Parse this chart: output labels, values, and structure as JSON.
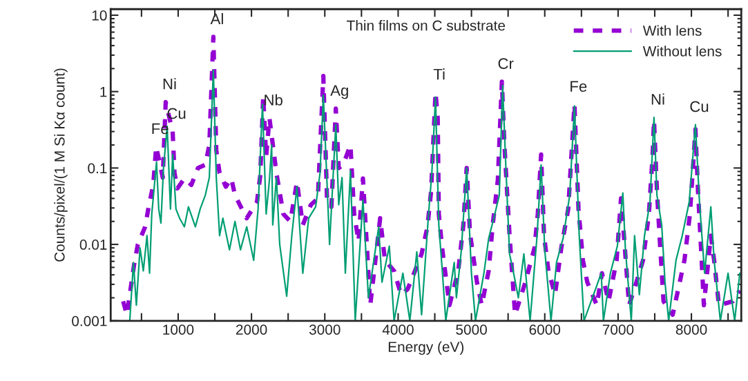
{
  "chart_data": {
    "type": "line",
    "title": "Thin films on C substrate",
    "xlabel": "Energy (eV)",
    "ylabel": "Counts/pixel/(1 M Si Kα count)",
    "log": "y",
    "grid": false,
    "legend": "top right",
    "xlim": [
      80,
      8680
    ],
    "ylim": [
      0.001,
      12
    ],
    "xticks": [
      {
        "value": 500,
        "label": null
      },
      1000,
      {
        "value": 1500,
        "label": null
      },
      2000,
      {
        "value": 2500,
        "label": null
      },
      3000,
      {
        "value": 3500,
        "label": null
      },
      4000,
      {
        "value": 4500,
        "label": null
      },
      5000,
      {
        "value": 5500,
        "label": null
      },
      6000,
      {
        "value": 6500,
        "label": null
      },
      7000,
      {
        "value": 7500,
        "label": null
      },
      8000,
      {
        "value": 8500,
        "label": null
      }
    ],
    "yticks": [
      0.001,
      0.01,
      0.1,
      1,
      10
    ],
    "series": [
      {
        "name": "With lens",
        "color": "#9400d3",
        "line_style": "dashed",
        "x": [
          250,
          300,
          400,
          450,
          550,
          595,
          660,
          700,
          790,
          830,
          925,
          950,
          990,
          1085,
          1180,
          1270,
          1370,
          1425,
          1480,
          1520,
          1565,
          1650,
          1725,
          1775,
          1870,
          1935,
          2075,
          2120,
          2160,
          2200,
          2245,
          2340,
          2435,
          2530,
          2620,
          2700,
          2810,
          2905,
          2980,
          3030,
          3090,
          3150,
          3190,
          3250,
          3350,
          3400,
          3460,
          3520,
          3570,
          3620,
          3755,
          3820,
          3945,
          4040,
          4130,
          4230,
          4320,
          4400,
          4450,
          4510,
          4540,
          4555,
          4600,
          4700,
          4820,
          4890,
          4935,
          4980,
          5075,
          5140,
          5235,
          5290,
          5360,
          5415,
          5450,
          5520,
          5595,
          5735,
          5860,
          5905,
          5950,
          5990,
          6050,
          6140,
          6225,
          6320,
          6405,
          6460,
          6520,
          6580,
          6710,
          6780,
          6870,
          6980,
          7040,
          7080,
          7150,
          7250,
          7340,
          7420,
          7470,
          7490,
          7530,
          7575,
          7620,
          7745,
          7905,
          7980,
          8055,
          8090,
          8140,
          8170,
          8265,
          8310,
          8375,
          8565,
          8660
        ],
        "values": [
          0.0018,
          0.0012,
          0.0055,
          0.01,
          0.017,
          0.03,
          0.06,
          0.19,
          0.075,
          0.73,
          0.3,
          0.086,
          0.054,
          0.073,
          0.06,
          0.1,
          0.11,
          0.2,
          5.2,
          0.17,
          0.086,
          0.057,
          0.073,
          0.044,
          0.029,
          0.022,
          0.036,
          0.08,
          0.88,
          0.14,
          0.45,
          0.086,
          0.025,
          0.02,
          0.066,
          0.018,
          0.033,
          0.04,
          1.6,
          0.04,
          0.031,
          0.6,
          0.1,
          0.11,
          0.2,
          0.025,
          0.011,
          0.073,
          0.011,
          0.0016,
          0.022,
          0.0062,
          0.0045,
          0.0022,
          0.0026,
          0.0045,
          0.0075,
          0.017,
          0.05,
          0.98,
          0.45,
          0.025,
          0.009,
          0.0016,
          0.0045,
          0.018,
          0.1,
          0.014,
          0.0032,
          0.0016,
          0.0045,
          0.018,
          0.07,
          1.35,
          0.2,
          0.013,
          0.0012,
          0.0032,
          0.009,
          0.025,
          0.15,
          0.013,
          0.0045,
          0.0022,
          0.009,
          0.029,
          0.68,
          0.029,
          0.0062,
          0.0032,
          0.0016,
          0.0042,
          0.0018,
          0.0062,
          0.04,
          0.013,
          0.0016,
          0.0032,
          0.0062,
          0.025,
          0.14,
          0.42,
          0.05,
          0.009,
          0.0018,
          0.0012,
          0.0062,
          0.025,
          0.32,
          0.05,
          0.0062,
          0.0016,
          0.013,
          0.0062,
          0.0016,
          0.0018,
          0.0025
        ]
      },
      {
        "name": "Without lens",
        "color": "#009e73",
        "line_style": "solid",
        "x": [
          340,
          390,
          430,
          480,
          525,
          575,
          610,
          640,
          705,
          735,
          765,
          800,
          850,
          895,
          925,
          970,
          1020,
          1085,
          1140,
          1235,
          1300,
          1370,
          1425,
          1480,
          1520,
          1565,
          1610,
          1700,
          1775,
          1850,
          1935,
          2030,
          2090,
          2150,
          2200,
          2245,
          2275,
          2290,
          2340,
          2385,
          2480,
          2550,
          2620,
          2700,
          2780,
          2875,
          2935,
          2980,
          3065,
          3150,
          3190,
          3235,
          3280,
          3350,
          3415,
          3520,
          3595,
          3735,
          3780,
          3880,
          3945,
          4065,
          4160,
          4255,
          4320,
          4415,
          4460,
          4510,
          4555,
          4605,
          4650,
          4765,
          4795,
          4860,
          4935,
          5000,
          5055,
          5170,
          5235,
          5310,
          5380,
          5425,
          5470,
          5520,
          5575,
          5640,
          5715,
          5800,
          5895,
          5950,
          6000,
          6085,
          6160,
          6250,
          6340,
          6405,
          6470,
          6535,
          6650,
          6770,
          6800,
          6895,
          6990,
          7065,
          7100,
          7180,
          7225,
          7290,
          7360,
          7435,
          7490,
          7530,
          7595,
          7640,
          7690,
          7790,
          7875,
          7970,
          8055,
          8110,
          8180,
          8265,
          8310,
          8395,
          8500,
          8590,
          8660
        ],
        "values": [
          0.001,
          0.0058,
          0.0016,
          0.009,
          0.0045,
          0.013,
          0.0042,
          0.025,
          0.12,
          0.029,
          0.019,
          0.1,
          0.35,
          0.029,
          0.15,
          0.029,
          0.022,
          0.017,
          0.031,
          0.017,
          0.029,
          0.044,
          0.075,
          1.9,
          0.075,
          0.013,
          0.022,
          0.0085,
          0.02,
          0.0085,
          0.017,
          0.0062,
          0.029,
          0.68,
          0.025,
          0.07,
          0.2,
          0.018,
          0.075,
          0.01,
          0.0021,
          0.013,
          0.057,
          0.0042,
          0.022,
          0.031,
          0.086,
          0.9,
          0.01,
          0.37,
          0.033,
          0.075,
          0.0042,
          0.092,
          0.001,
          0.038,
          0.002,
          0.017,
          0.0032,
          0.0095,
          0.001,
          0.0042,
          0.001,
          0.008,
          0.0012,
          0.025,
          0.086,
          0.85,
          0.018,
          0.0042,
          0.001,
          0.0058,
          0.002,
          0.008,
          0.1,
          0.0042,
          0.001,
          0.0042,
          0.012,
          0.023,
          0.044,
          1.2,
          0.1,
          0.0075,
          0.0042,
          0.002,
          0.0075,
          0.001,
          0.013,
          0.11,
          0.0085,
          0.001,
          0.0058,
          0.012,
          0.044,
          0.65,
          0.013,
          0.001,
          0.002,
          0.0042,
          0.001,
          0.0042,
          0.0095,
          0.047,
          0.0085,
          0.001,
          0.013,
          0.0022,
          0.013,
          0.036,
          0.46,
          0.044,
          0.018,
          0.0032,
          0.001,
          0.0062,
          0.013,
          0.036,
          0.37,
          0.036,
          0.0042,
          0.031,
          0.0062,
          0.001,
          0.0042,
          0.001,
          0.0042
        ]
      }
    ],
    "annotations": [
      {
        "text": "Fe",
        "x": 700,
        "y": 0.19
      },
      {
        "text": "Ni",
        "x": 830,
        "y": 0.73
      },
      {
        "text": "Cu",
        "x": 925,
        "y": 0.3
      },
      {
        "text": "Al",
        "x": 1480,
        "y": 5.2
      },
      {
        "text": "Nb",
        "x": 2245,
        "y": 0.45
      },
      {
        "text": "Ag",
        "x": 3150,
        "y": 0.6
      },
      {
        "text": "Ti",
        "x": 4510,
        "y": 0.98
      },
      {
        "text": "Cr",
        "x": 5415,
        "y": 1.35
      },
      {
        "text": "Fe",
        "x": 6405,
        "y": 0.68
      },
      {
        "text": "Ni",
        "x": 7490,
        "y": 0.46
      },
      {
        "text": "Cu",
        "x": 8055,
        "y": 0.37
      }
    ]
  }
}
